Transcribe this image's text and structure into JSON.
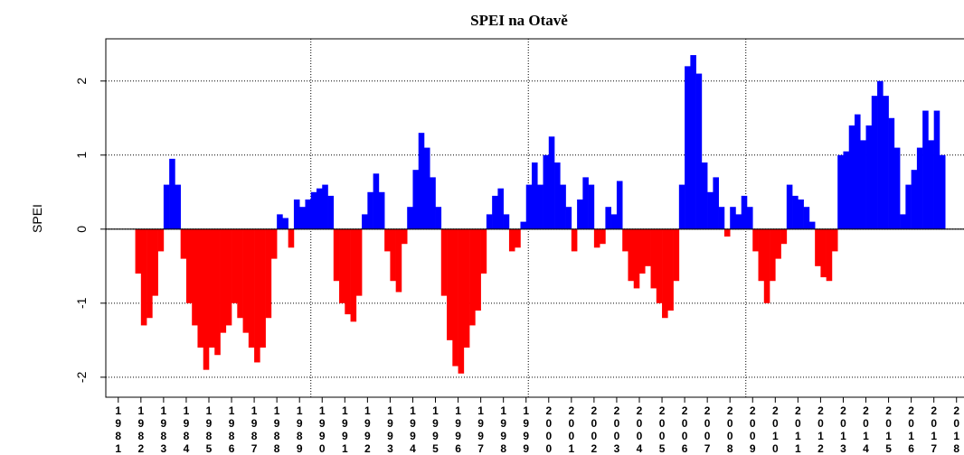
{
  "chart_data": {
    "type": "bar",
    "title": "SPEI na Otavě",
    "ylabel": "SPEI",
    "pos_color": "#0000ff",
    "neg_color": "#ff0000",
    "grid": true,
    "xlim": [
      1980.45,
      2018.33
    ],
    "ylim": [
      -2.27,
      2.57
    ],
    "yticks": [
      -2,
      -1,
      0,
      1,
      2
    ],
    "xticks": [
      1981,
      1982,
      1983,
      1984,
      1985,
      1986,
      1987,
      1988,
      1989,
      1990,
      1991,
      1992,
      1993,
      1994,
      1995,
      1996,
      1997,
      1998,
      1999,
      2000,
      2001,
      2002,
      2003,
      2004,
      2005,
      2006,
      2007,
      2008,
      2009,
      2010,
      2011,
      2012,
      2013,
      2014,
      2015,
      2016,
      2017,
      2018
    ],
    "xgrid": [
      1989.5,
      1999.1,
      2008.7
    ],
    "bar_width": 0.25,
    "x": [
      1981,
      1981.25,
      1981.5,
      1981.75,
      1982,
      1982.25,
      1982.5,
      1982.75,
      1983,
      1983.25,
      1983.5,
      1983.75,
      1984,
      1984.25,
      1984.5,
      1984.75,
      1985,
      1985.25,
      1985.5,
      1985.75,
      1986,
      1986.25,
      1986.5,
      1986.75,
      1987,
      1987.25,
      1987.5,
      1987.75,
      1988,
      1988.25,
      1988.5,
      1988.75,
      1989,
      1989.25,
      1989.5,
      1989.75,
      1990,
      1990.25,
      1990.5,
      1990.75,
      1991,
      1991.25,
      1991.5,
      1991.75,
      1992,
      1992.25,
      1992.5,
      1992.75,
      1993,
      1993.25,
      1993.5,
      1993.75,
      1994,
      1994.25,
      1994.5,
      1994.75,
      1995,
      1995.25,
      1995.5,
      1995.75,
      1996,
      1996.25,
      1996.5,
      1996.75,
      1997,
      1997.25,
      1997.5,
      1997.75,
      1998,
      1998.25,
      1998.5,
      1998.75,
      1999,
      1999.25,
      1999.5,
      1999.75,
      2000,
      2000.25,
      2000.5,
      2000.75,
      2001,
      2001.25,
      2001.5,
      2001.75,
      2002,
      2002.25,
      2002.5,
      2002.75,
      2003,
      2003.25,
      2003.5,
      2003.75,
      2004,
      2004.25,
      2004.5,
      2004.75,
      2005,
      2005.25,
      2005.5,
      2005.75,
      2006,
      2006.25,
      2006.5,
      2006.75,
      2007,
      2007.25,
      2007.5,
      2007.75,
      2008,
      2008.25,
      2008.5,
      2008.75,
      2009,
      2009.25,
      2009.5,
      2009.75,
      2010,
      2010.25,
      2010.5,
      2010.75,
      2011,
      2011.25,
      2011.5,
      2011.75,
      2012,
      2012.25,
      2012.5,
      2012.75,
      2013,
      2013.25,
      2013.5,
      2013.75,
      2014,
      2014.25,
      2014.5,
      2014.75,
      2015,
      2015.25,
      2015.5,
      2015.75,
      2016,
      2016.25,
      2016.5,
      2016.75,
      2017,
      2017.25
    ],
    "values": [
      0,
      0,
      0,
      -0.6,
      -1.3,
      -1.2,
      -0.9,
      -0.3,
      0.6,
      0.95,
      0.6,
      -0.4,
      -1.0,
      -1.3,
      -1.6,
      -1.9,
      -1.6,
      -1.7,
      -1.4,
      -1.3,
      -1.0,
      -1.2,
      -1.4,
      -1.6,
      -1.8,
      -1.6,
      -1.2,
      -0.4,
      0.2,
      0.15,
      -0.25,
      0.4,
      0.3,
      0.4,
      0.5,
      0.55,
      0.6,
      0.45,
      -0.7,
      -1.0,
      -1.15,
      -1.25,
      -0.9,
      0.2,
      0.5,
      0.75,
      0.5,
      -0.3,
      -0.7,
      -0.85,
      -0.2,
      0.3,
      0.8,
      1.3,
      1.1,
      0.7,
      0.3,
      -0.9,
      -1.5,
      -1.85,
      -1.95,
      -1.6,
      -1.3,
      -1.1,
      -0.6,
      0.2,
      0.45,
      0.55,
      0.2,
      -0.3,
      -0.25,
      0.1,
      0.6,
      0.9,
      0.6,
      1.0,
      1.25,
      0.9,
      0.6,
      0.3,
      -0.3,
      0.4,
      0.7,
      0.6,
      -0.25,
      -0.2,
      0.3,
      0.2,
      0.65,
      -0.3,
      -0.7,
      -0.8,
      -0.6,
      -0.5,
      -0.8,
      -1.0,
      -1.2,
      -1.1,
      -0.7,
      0.6,
      2.2,
      2.35,
      2.1,
      0.9,
      0.5,
      0.7,
      0.3,
      -0.1,
      0.3,
      0.2,
      0.45,
      0.3,
      -0.3,
      -0.7,
      -1.0,
      -0.7,
      -0.4,
      -0.2,
      0.6,
      0.45,
      0.4,
      0.3,
      0.1,
      -0.5,
      -0.65,
      -0.7,
      -0.3,
      1.0,
      1.05,
      1.4,
      1.55,
      1.2,
      1.4,
      1.8,
      2.0,
      1.8,
      1.5,
      1.1,
      0.2,
      0.6,
      0.8,
      1.1,
      1.6,
      1.2,
      1.6,
      1.0
    ]
  }
}
